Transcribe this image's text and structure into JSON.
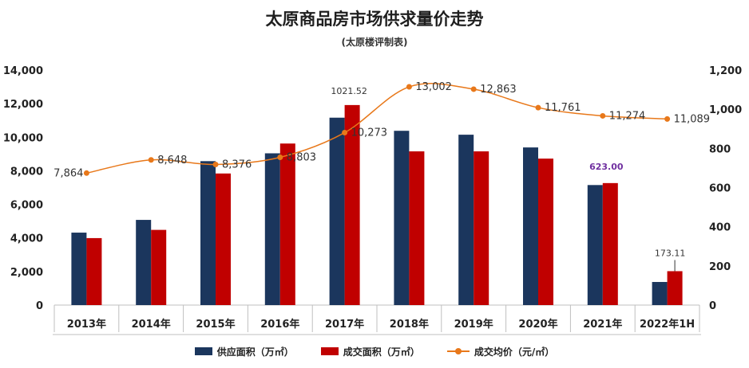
{
  "title": "太原商品房市场供求量价走势",
  "subtitle": "(太原楼评制表)",
  "colors": {
    "supply": "#1b365d",
    "deal": "#c00000",
    "price": "#e8781a",
    "highlight": "#7030a0"
  },
  "chart_data": {
    "type": "bar",
    "categories": [
      "2013年",
      "2014年",
      "2015年",
      "2016年",
      "2017年",
      "2018年",
      "2019年",
      "2020年",
      "2021年",
      "2022年1H"
    ],
    "left_axis": {
      "ylim": [
        0,
        14000
      ],
      "ticks": [
        "0",
        "2,000",
        "4,000",
        "6,000",
        "8,000",
        "10,000",
        "12,000",
        "14,000"
      ]
    },
    "right_axis": {
      "ylim": [
        0,
        1200
      ],
      "ticks": [
        "0",
        "200",
        "400",
        "600",
        "800",
        "1,000",
        "1,200"
      ]
    },
    "series": [
      {
        "name": "供应面积（万㎡）",
        "type": "bar",
        "axis": "right",
        "values": [
          370,
          435,
          735,
          775,
          957,
          890,
          870,
          805,
          613,
          118
        ]
      },
      {
        "name": "成交面积（万㎡）",
        "type": "bar",
        "axis": "right",
        "values": [
          342,
          384,
          672,
          825,
          1021.52,
          785,
          785,
          748,
          623.0,
          173.11
        ]
      },
      {
        "name": "成交均价（元/㎡）",
        "type": "line",
        "axis": "left",
        "values": [
          7864,
          8648,
          8376,
          8803,
          10273,
          13002,
          12863,
          11761,
          11274,
          11089
        ]
      }
    ],
    "price_labels": [
      "7,864",
      "8,648",
      "8,376",
      "8,803",
      "10,273",
      "13,002",
      "12,863",
      "11,761",
      "11,274",
      "11,089"
    ],
    "annotations": [
      "1021.52",
      "623.00",
      "173.11"
    ],
    "legend": [
      "供应面积（万㎡）",
      "成交面积（万㎡）",
      "成交均价（元/㎡）"
    ],
    "legend_position": "bottom"
  }
}
